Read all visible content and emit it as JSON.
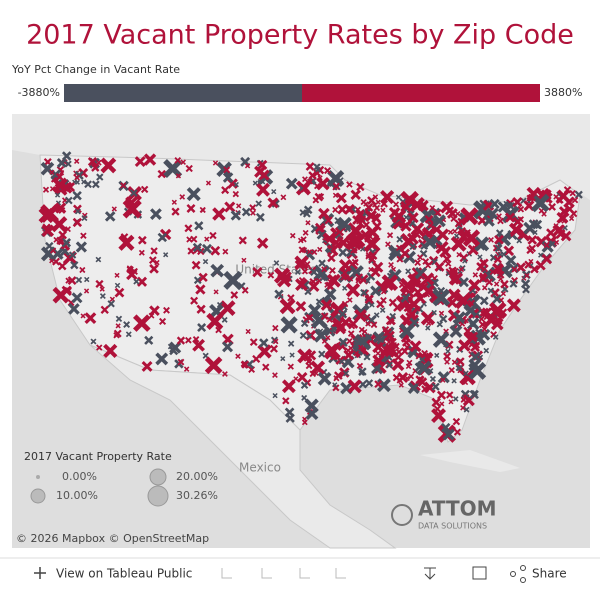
{
  "header": {
    "title": "2017 Vacant Property Rates by Zip Code"
  },
  "color_legend": {
    "title": "YoY Pct Change in Vacant Rate",
    "min_label": "-3880%",
    "max_label": "3880%"
  },
  "map": {
    "country_label": "United States",
    "mexico_label": "Mexico"
  },
  "size_legend": {
    "title": "2017 Vacant Property Rate",
    "items": [
      "0.00%",
      "10.00%",
      "20.00%",
      "30.26%"
    ]
  },
  "attribution": "© 2026 Mapbox © OpenStreetMap",
  "logo": {
    "name": "ATTOM",
    "tagline": "DATA SOLUTIONS"
  },
  "toolbar": {
    "view": "View on Tableau Public",
    "share": "Share"
  }
}
